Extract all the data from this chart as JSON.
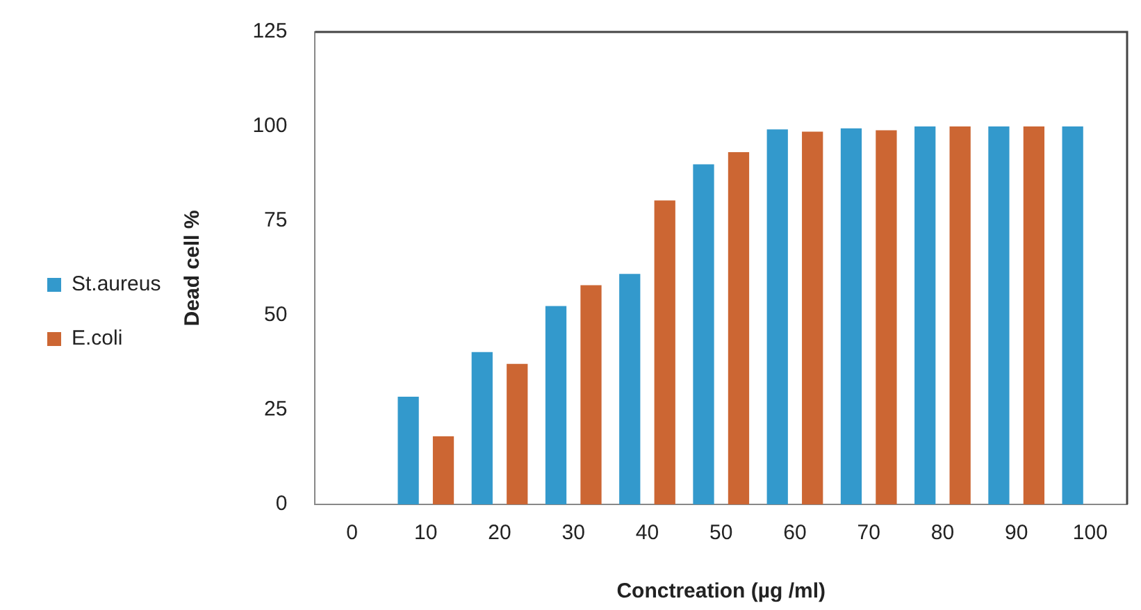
{
  "chart_data": {
    "type": "bar",
    "xlabel": "Conctreation (µg /ml)",
    "ylabel": "Dead cell %",
    "categories": [
      "0",
      "10",
      "20",
      "30",
      "40",
      "50",
      "60",
      "70",
      "80",
      "90",
      "100"
    ],
    "series": [
      {
        "name": "St.aureus",
        "color": "#3399cc",
        "values": [
          null,
          28.5,
          40.3,
          52.5,
          61,
          90,
          99.2,
          99.5,
          100,
          100,
          100
        ]
      },
      {
        "name": "E.coli",
        "color": "#cc6633",
        "values": [
          null,
          18,
          37.2,
          58,
          80.4,
          93.2,
          98.6,
          99,
          100,
          100,
          null
        ]
      }
    ],
    "ylim": [
      0,
      125
    ],
    "yticks": [
      0,
      25,
      50,
      75,
      100,
      125
    ],
    "grid": false,
    "legend": "left"
  }
}
